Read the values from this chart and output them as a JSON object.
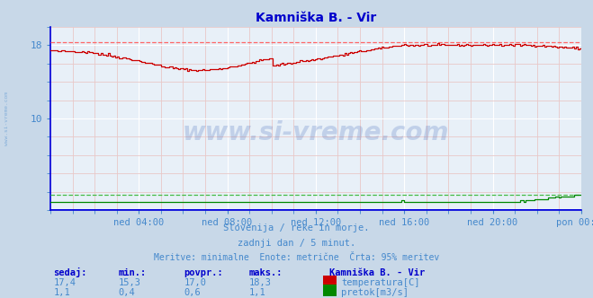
{
  "title": "Kamniška B. - Vir",
  "bg_color": "#c8d8e8",
  "plot_bg_color": "#e8f0f8",
  "grid_color": "#ffffff",
  "grid_minor_color": "#e8c8c8",
  "title_color": "#0000cc",
  "label_color": "#4488cc",
  "text_color": "#4488cc",
  "xlabel_ticks": [
    "ned 04:00",
    "ned 08:00",
    "ned 12:00",
    "ned 16:00",
    "ned 20:00",
    "pon 00:00"
  ],
  "yticks": [
    10,
    18
  ],
  "ylim_temp": [
    0,
    20
  ],
  "temp_color": "#cc0000",
  "flow_color": "#008800",
  "blue_spine_color": "#0000dd",
  "temp_95pct_color": "#ff6666",
  "flow_95pct_color": "#44bb44",
  "watermark_text": "www.si-vreme.com",
  "watermark_color": "#1144aa",
  "watermark_alpha": 0.18,
  "subtitle1": "Slovenija / reke in morje.",
  "subtitle2": "zadnji dan / 5 minut.",
  "subtitle3": "Meritve: minimalne  Enote: metrične  Črta: 95% meritev",
  "legend_title": "Kamniška B. - Vir",
  "legend_items": [
    {
      "label": "temperatura[C]",
      "color": "#cc0000"
    },
    {
      "label": "pretok[m3/s]",
      "color": "#008800"
    }
  ],
  "stats_headers": [
    "sedaj:",
    "min.:",
    "povpr.:",
    "maks.:"
  ],
  "stats_temp": [
    "17,4",
    "15,3",
    "17,0",
    "18,3"
  ],
  "stats_flow": [
    "1,1",
    "0,4",
    "0,6",
    "1,1"
  ],
  "n_points": 288,
  "temp_95pct": 18.3,
  "flow_95pct": 1.1,
  "temp_ylim_max": 20.0,
  "flow_display_scale": 18.0
}
